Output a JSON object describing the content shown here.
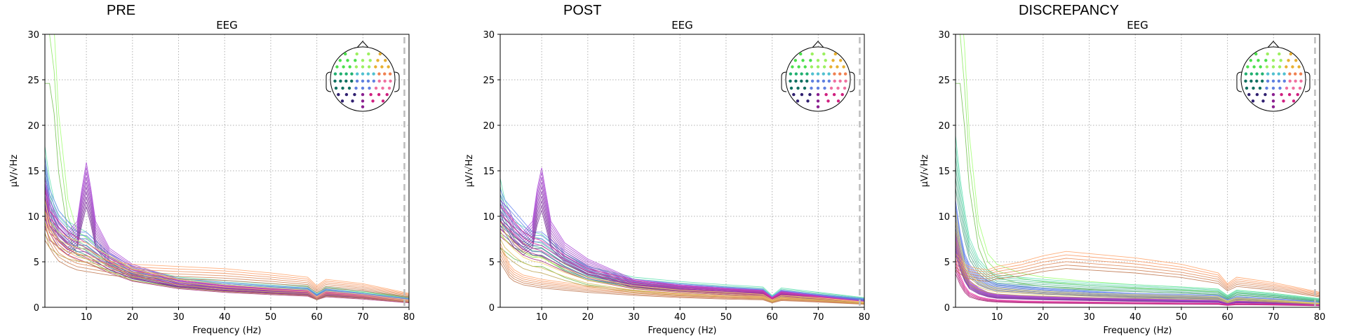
{
  "figure": {
    "panels": [
      {
        "suptitle": "PRE",
        "title": "EEG"
      },
      {
        "suptitle": "POST",
        "title": "EEG"
      },
      {
        "suptitle": "DISCREPANCY",
        "title": "EEG"
      }
    ]
  },
  "chart_data": [
    {
      "type": "line",
      "suptitle": "PRE",
      "title": "EEG",
      "xlabel": "Frequency (Hz)",
      "ylabel": "µV/√Hz",
      "xlim": [
        1,
        80
      ],
      "ylim": [
        0,
        30
      ],
      "xticks": [
        "10",
        "20",
        "30",
        "40",
        "50",
        "60",
        "70",
        "80"
      ],
      "yticks": [
        "0",
        "5",
        "10",
        "15",
        "20",
        "25",
        "30"
      ],
      "grid": true,
      "vline_x": 79,
      "inset": "sensor-layout-head",
      "series_groups": [
        {
          "color": "#8df060",
          "count": 3,
          "x": [
            1,
            2,
            3,
            4,
            6,
            8,
            10,
            15,
            20,
            30,
            40,
            50,
            58,
            60,
            62,
            70,
            80
          ],
          "y": [
            30,
            30,
            26,
            18,
            10,
            7,
            6.5,
            4.8,
            3.6,
            2.7,
            2.2,
            1.9,
            1.7,
            1.1,
            1.6,
            1.4,
            0.9
          ]
        },
        {
          "color": "#56c8a0",
          "count": 6,
          "x": [
            1,
            2,
            3,
            4,
            6,
            8,
            10,
            15,
            20,
            30,
            40,
            50,
            58,
            60,
            62,
            70,
            80
          ],
          "y": [
            15,
            12,
            10,
            9,
            8,
            7.5,
            7,
            5,
            3.8,
            2.8,
            2.5,
            2.2,
            2,
            1.3,
            1.9,
            1.5,
            1
          ]
        },
        {
          "color": "#5b78d8",
          "count": 8,
          "x": [
            1,
            2,
            3,
            4,
            6,
            8,
            10,
            15,
            20,
            30,
            40,
            50,
            58,
            60,
            62,
            70,
            80
          ],
          "y": [
            14,
            11,
            10,
            9,
            8,
            7,
            7,
            5,
            3.8,
            2.7,
            2.3,
            2,
            1.8,
            1.2,
            1.7,
            1.3,
            0.8
          ]
        },
        {
          "color": "#9a40c0",
          "count": 10,
          "x": [
            1,
            2,
            3,
            4,
            6,
            8,
            9,
            10,
            11,
            12,
            15,
            20,
            30,
            40,
            50,
            58,
            60,
            62,
            70,
            80
          ],
          "y": [
            12,
            10,
            9,
            8,
            7,
            8,
            11,
            13.5,
            11,
            8,
            5.5,
            4,
            2.6,
            2.1,
            1.8,
            1.6,
            1,
            1.5,
            1.2,
            0.7
          ]
        },
        {
          "color": "#d02a90",
          "count": 5,
          "x": [
            1,
            2,
            3,
            4,
            6,
            8,
            10,
            15,
            20,
            30,
            40,
            50,
            58,
            60,
            62,
            70,
            80
          ],
          "y": [
            11,
            9,
            8.5,
            8,
            7,
            6.5,
            6,
            4.6,
            3.5,
            2.5,
            2,
            1.7,
            1.5,
            1,
            1.4,
            1.1,
            0.6
          ]
        },
        {
          "color": "#f0905a",
          "count": 6,
          "x": [
            1,
            2,
            3,
            4,
            6,
            8,
            10,
            15,
            20,
            30,
            40,
            50,
            58,
            60,
            62,
            70,
            80
          ],
          "y": [
            9,
            8,
            7,
            6.2,
            5.5,
            5,
            4.8,
            4.3,
            4,
            3.8,
            3.6,
            3.2,
            2.8,
            2,
            2.6,
            2.2,
            1.3
          ]
        },
        {
          "color": "#f0d060",
          "count": 4,
          "x": [
            1,
            2,
            3,
            4,
            6,
            8,
            10,
            15,
            20,
            30,
            40,
            50,
            58,
            60,
            62,
            70,
            80
          ],
          "y": [
            10,
            8,
            7.5,
            7,
            6.5,
            6.2,
            6,
            4.8,
            3.6,
            2.6,
            2.1,
            1.8,
            1.6,
            1,
            1.5,
            1.2,
            0.7
          ]
        }
      ]
    },
    {
      "type": "line",
      "suptitle": "POST",
      "title": "EEG",
      "xlabel": "Frequency (Hz)",
      "ylabel": "µV/√Hz",
      "xlim": [
        1,
        80
      ],
      "ylim": [
        0,
        30
      ],
      "xticks": [
        "10",
        "20",
        "30",
        "40",
        "50",
        "60",
        "70",
        "80"
      ],
      "yticks": [
        "0",
        "5",
        "10",
        "15",
        "20",
        "25",
        "30"
      ],
      "grid": true,
      "vline_x": 79,
      "inset": "sensor-layout-head",
      "series_groups": [
        {
          "color": "#8df060",
          "count": 3,
          "x": [
            1,
            2,
            3,
            4,
            6,
            8,
            10,
            15,
            20,
            30,
            40,
            50,
            58,
            60,
            62,
            70,
            80
          ],
          "y": [
            8,
            7.5,
            7,
            6.5,
            6,
            5.5,
            5.5,
            4,
            3,
            2.2,
            1.8,
            1.6,
            1.4,
            0.8,
            1.3,
            1.1,
            0.7
          ]
        },
        {
          "color": "#56c8a0",
          "count": 6,
          "x": [
            1,
            2,
            3,
            4,
            6,
            8,
            10,
            15,
            20,
            30,
            40,
            50,
            58,
            60,
            62,
            70,
            80
          ],
          "y": [
            12,
            10,
            9,
            8,
            7.5,
            7,
            6.8,
            5,
            3.8,
            2.8,
            2.4,
            2.1,
            1.9,
            1.1,
            1.8,
            1.4,
            0.9
          ]
        },
        {
          "color": "#5b78d8",
          "count": 8,
          "x": [
            1,
            2,
            3,
            4,
            6,
            8,
            10,
            15,
            20,
            30,
            40,
            50,
            58,
            60,
            62,
            70,
            80
          ],
          "y": [
            11,
            10,
            9.5,
            9,
            8,
            7,
            7,
            5.2,
            3.8,
            2.6,
            2.2,
            1.9,
            1.7,
            1,
            1.6,
            1.2,
            0.8
          ]
        },
        {
          "color": "#9a40c0",
          "count": 10,
          "x": [
            1,
            2,
            3,
            4,
            6,
            8,
            9,
            10,
            11,
            12,
            15,
            20,
            30,
            40,
            50,
            58,
            60,
            62,
            70,
            80
          ],
          "y": [
            10,
            9.5,
            9,
            8,
            7,
            8,
            11,
            13,
            10.5,
            8,
            6,
            4.5,
            2.6,
            2.1,
            1.8,
            1.6,
            0.9,
            1.5,
            1.1,
            0.6
          ]
        },
        {
          "color": "#d02a90",
          "count": 5,
          "x": [
            1,
            2,
            3,
            4,
            6,
            8,
            10,
            15,
            20,
            30,
            40,
            50,
            58,
            60,
            62,
            70,
            80
          ],
          "y": [
            9.5,
            9,
            8.5,
            8,
            7,
            6.5,
            6.2,
            4.8,
            3.6,
            2.5,
            2,
            1.7,
            1.5,
            0.9,
            1.4,
            1,
            0.5
          ]
        },
        {
          "color": "#f0905a",
          "count": 6,
          "x": [
            1,
            2,
            3,
            4,
            6,
            8,
            10,
            15,
            20,
            30,
            40,
            50,
            58,
            60,
            62,
            70,
            80
          ],
          "y": [
            6,
            5,
            4,
            3.5,
            3,
            2.8,
            2.6,
            2.3,
            2,
            1.6,
            1.3,
            1.1,
            1,
            0.6,
            0.9,
            0.7,
            0.4
          ]
        },
        {
          "color": "#f0d060",
          "count": 4,
          "x": [
            1,
            2,
            3,
            4,
            6,
            8,
            10,
            15,
            20,
            30,
            40,
            50,
            58,
            60,
            62,
            70,
            80
          ],
          "y": [
            8,
            7,
            6.5,
            6,
            5.2,
            4.8,
            4.6,
            3.6,
            2.8,
            2,
            1.6,
            1.4,
            1.2,
            0.7,
            1.1,
            0.9,
            0.5
          ]
        }
      ]
    },
    {
      "type": "line",
      "suptitle": "DISCREPANCY",
      "title": "EEG",
      "xlabel": "Frequency (Hz)",
      "ylabel": "µV/√Hz",
      "xlim": [
        1,
        80
      ],
      "ylim": [
        0,
        30
      ],
      "xticks": [
        "10",
        "20",
        "30",
        "40",
        "50",
        "60",
        "70",
        "80"
      ],
      "yticks": [
        "0",
        "5",
        "10",
        "15",
        "20",
        "25",
        "30"
      ],
      "grid": true,
      "vline_x": 79,
      "inset": "sensor-layout-head",
      "series_groups": [
        {
          "color": "#8df060",
          "count": 3,
          "x": [
            1,
            2,
            3,
            4,
            6,
            8,
            10,
            15,
            20,
            30,
            40,
            50,
            58,
            60,
            62,
            70,
            80
          ],
          "y": [
            30,
            30,
            24,
            16,
            8,
            5,
            4,
            3.2,
            2.8,
            2.4,
            2.1,
            1.9,
            1.7,
            1.1,
            1.6,
            1.3,
            0.8
          ]
        },
        {
          "color": "#56c8a0",
          "count": 6,
          "x": [
            1,
            2,
            3,
            4,
            6,
            8,
            10,
            15,
            20,
            30,
            40,
            50,
            58,
            60,
            62,
            70,
            80
          ],
          "y": [
            16,
            12,
            9,
            6.5,
            4.5,
            3.5,
            3,
            2.8,
            2.6,
            2.3,
            2.1,
            1.9,
            1.7,
            1.1,
            1.6,
            1.3,
            0.8
          ]
        },
        {
          "color": "#5b78d8",
          "count": 8,
          "x": [
            1,
            2,
            3,
            4,
            6,
            8,
            10,
            15,
            20,
            30,
            40,
            50,
            58,
            60,
            62,
            70,
            80
          ],
          "y": [
            10,
            7,
            5,
            4,
            3,
            2.5,
            2.2,
            2,
            1.8,
            1.5,
            1.3,
            1.2,
            1.1,
            0.7,
            1,
            0.8,
            0.5
          ]
        },
        {
          "color": "#9a40c0",
          "count": 10,
          "x": [
            1,
            2,
            3,
            4,
            6,
            8,
            10,
            15,
            20,
            30,
            40,
            50,
            58,
            60,
            62,
            70,
            80
          ],
          "y": [
            7,
            5,
            3.5,
            2.5,
            1.8,
            1.4,
            1.2,
            1.1,
            1,
            0.9,
            0.8,
            0.7,
            0.65,
            0.4,
            0.6,
            0.5,
            0.3
          ]
        },
        {
          "color": "#d02a90",
          "count": 5,
          "x": [
            1,
            2,
            3,
            4,
            6,
            8,
            10,
            15,
            20,
            30,
            40,
            50,
            58,
            60,
            62,
            70,
            80
          ],
          "y": [
            4.5,
            3,
            2,
            1.4,
            1,
            0.8,
            0.7,
            0.6,
            0.55,
            0.5,
            0.45,
            0.4,
            0.38,
            0.25,
            0.35,
            0.3,
            0.2
          ]
        },
        {
          "color": "#f0905a",
          "count": 6,
          "x": [
            1,
            2,
            3,
            4,
            6,
            8,
            10,
            15,
            20,
            25,
            30,
            40,
            50,
            58,
            60,
            62,
            70,
            80
          ],
          "y": [
            5,
            4.5,
            4,
            3.8,
            3.6,
            3.5,
            3.8,
            4.2,
            4.8,
            5.2,
            5,
            4.6,
            4,
            3.2,
            2.2,
            2.8,
            2.3,
            1.4
          ]
        },
        {
          "color": "#f0d060",
          "count": 4,
          "x": [
            1,
            2,
            3,
            4,
            6,
            8,
            10,
            15,
            20,
            30,
            40,
            50,
            58,
            60,
            62,
            70,
            80
          ],
          "y": [
            9,
            6,
            4,
            3,
            2.4,
            2,
            1.8,
            1.6,
            1.5,
            1.3,
            1.2,
            1.1,
            1,
            0.6,
            0.9,
            0.7,
            0.4
          ]
        }
      ]
    }
  ]
}
